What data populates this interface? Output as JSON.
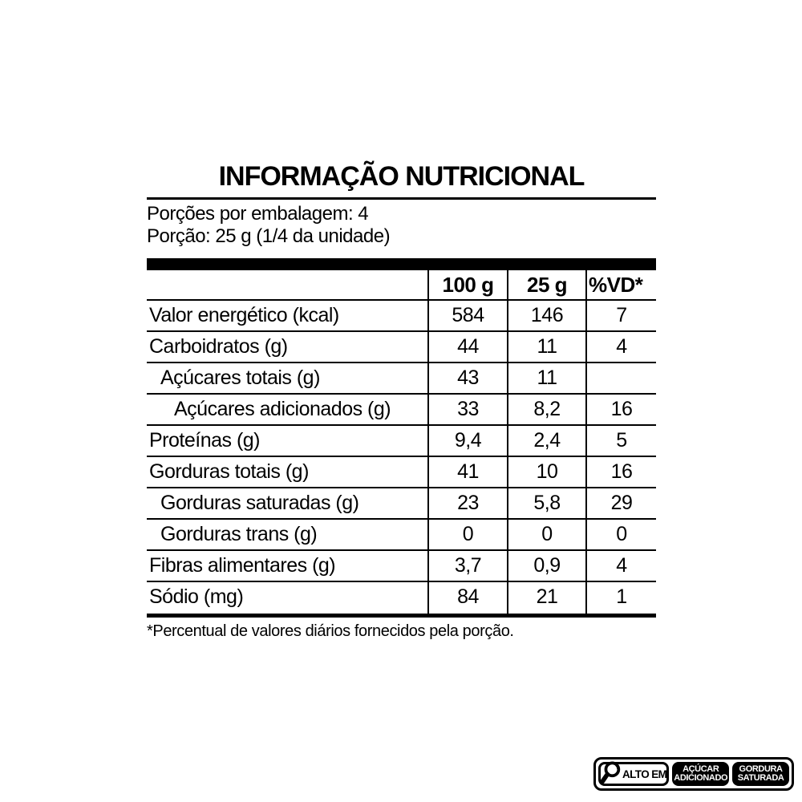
{
  "title": "INFORMAÇÃO NUTRICIONAL",
  "serving_info": {
    "line1": "Porções por embalagem: 4",
    "line2": "Porção: 25 g (1/4 da unidade)"
  },
  "table": {
    "columns": [
      "100 g",
      "25 g",
      "%VD*"
    ],
    "rows": [
      {
        "label": "Valor energético (kcal)",
        "indent": 0,
        "per100": "584",
        "per25": "146",
        "vd": "7"
      },
      {
        "label": "Carboidratos (g)",
        "indent": 0,
        "per100": "44",
        "per25": "11",
        "vd": "4"
      },
      {
        "label": "Açúcares totais (g)",
        "indent": 1,
        "per100": "43",
        "per25": "11",
        "vd": ""
      },
      {
        "label": "Açúcares adicionados (g)",
        "indent": 2,
        "per100": "33",
        "per25": "8,2",
        "vd": "16"
      },
      {
        "label": "Proteínas (g)",
        "indent": 0,
        "per100": "9,4",
        "per25": "2,4",
        "vd": "5"
      },
      {
        "label": "Gorduras totais (g)",
        "indent": 0,
        "per100": "41",
        "per25": "10",
        "vd": "16"
      },
      {
        "label": "Gorduras saturadas (g)",
        "indent": 1,
        "per100": "23",
        "per25": "5,8",
        "vd": "29"
      },
      {
        "label": "Gorduras trans (g)",
        "indent": 1,
        "per100": "0",
        "per25": "0",
        "vd": "0"
      },
      {
        "label": "Fibras alimentares (g)",
        "indent": 0,
        "per100": "3,7",
        "per25": "0,9",
        "vd": "4"
      },
      {
        "label": "Sódio (mg)",
        "indent": 0,
        "per100": "84",
        "per25": "21",
        "vd": "1"
      }
    ],
    "footnote": "*Percentual de valores diários fornecidos pela porção."
  },
  "warning_badge": {
    "high_in_label": "ALTO EM",
    "icon": "magnifier-icon",
    "warnings": [
      {
        "line1": "AÇÚCAR",
        "line2": "ADICIONADO"
      },
      {
        "line1": "GORDURA",
        "line2": "SATURADA"
      }
    ],
    "colors": {
      "black": "#000000",
      "white": "#ffffff"
    }
  }
}
